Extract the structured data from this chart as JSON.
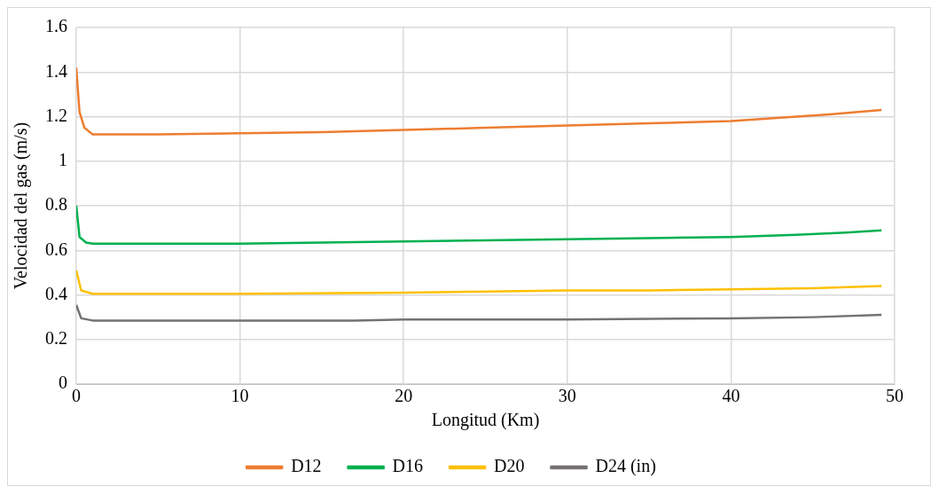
{
  "chart_data": {
    "type": "line",
    "xlabel": "Longitud (Km)",
    "ylabel": "Velocidad del gas (m/s)",
    "xlim": [
      0,
      50
    ],
    "xticks": [
      0,
      10,
      20,
      30,
      40,
      50
    ],
    "ylim": [
      0,
      1.6
    ],
    "yticks": [
      0,
      0.2,
      0.4,
      0.6,
      0.8,
      1,
      1.2,
      1.4,
      1.6
    ],
    "grid": true,
    "legend": "bottom",
    "marker": "none",
    "line_style": "solid",
    "series": [
      {
        "name": "D12",
        "color": "#ed7d31",
        "x": [
          0,
          0.2,
          0.5,
          1,
          5,
          10,
          15,
          20,
          25,
          30,
          35,
          40,
          44,
          46,
          49.2
        ],
        "values": [
          1.42,
          1.22,
          1.15,
          1.12,
          1.12,
          1.125,
          1.13,
          1.14,
          1.15,
          1.16,
          1.17,
          1.18,
          1.2,
          1.21,
          1.23
        ]
      },
      {
        "name": "D16",
        "color": "#00b050",
        "x": [
          0,
          0.2,
          0.6,
          1,
          10,
          15,
          20,
          25,
          30,
          35,
          40,
          44,
          47,
          49.2
        ],
        "values": [
          0.8,
          0.66,
          0.635,
          0.63,
          0.63,
          0.635,
          0.64,
          0.645,
          0.65,
          0.655,
          0.66,
          0.67,
          0.68,
          0.69
        ]
      },
      {
        "name": "D20",
        "color": "#ffc000",
        "x": [
          0,
          0.3,
          1,
          10,
          20,
          25,
          30,
          35,
          40,
          45,
          49.2
        ],
        "values": [
          0.51,
          0.42,
          0.405,
          0.405,
          0.41,
          0.415,
          0.42,
          0.42,
          0.425,
          0.43,
          0.44
        ]
      },
      {
        "name": "D24 (in)",
        "color": "#767171",
        "x": [
          0,
          0.3,
          1,
          17,
          20,
          30,
          40,
          45,
          49.2
        ],
        "values": [
          0.355,
          0.295,
          0.285,
          0.285,
          0.29,
          0.29,
          0.295,
          0.3,
          0.31
        ]
      }
    ]
  }
}
